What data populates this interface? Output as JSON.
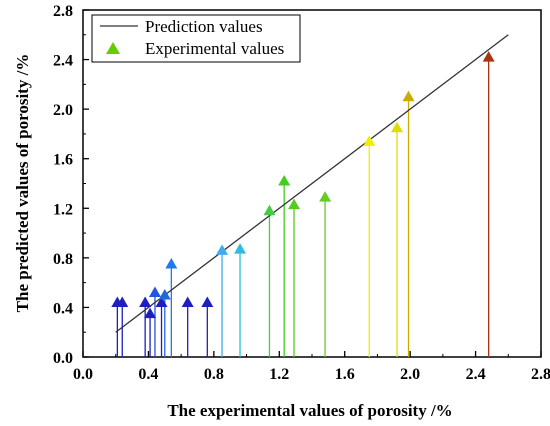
{
  "chart_data": {
    "type": "scatter",
    "xlabel": "The  experimental values of porosity /%",
    "ylabel": "The  predicted values of porosity /%",
    "xlim": [
      0.0,
      2.8
    ],
    "ylim": [
      0.0,
      2.8
    ],
    "x_ticks": [
      "0.0",
      "0.4",
      "0.8",
      "1.2",
      "1.6",
      "2.0",
      "2.4",
      "2.8"
    ],
    "y_ticks": [
      "0.0",
      "0.4",
      "0.8",
      "1.2",
      "1.6",
      "2.0",
      "2.4",
      "2.8"
    ],
    "legend": {
      "position": "top-left",
      "entries": [
        "Prediction values",
        "Experimental values"
      ]
    },
    "prediction_line": {
      "name": "Prediction values",
      "x": [
        0.2,
        2.6
      ],
      "y": [
        0.2,
        2.6
      ],
      "color": "#333333"
    },
    "experimental": {
      "name": "Experimental values",
      "legend_color": "#66cc00",
      "points": [
        {
          "x": 0.21,
          "y": 0.44,
          "color": "#1f1fbf"
        },
        {
          "x": 0.24,
          "y": 0.44,
          "color": "#1f1fbf"
        },
        {
          "x": 0.38,
          "y": 0.44,
          "color": "#1f1fbf"
        },
        {
          "x": 0.41,
          "y": 0.35,
          "color": "#1f1fbf"
        },
        {
          "x": 0.44,
          "y": 0.52,
          "color": "#2255dd"
        },
        {
          "x": 0.48,
          "y": 0.44,
          "color": "#1f1fbf"
        },
        {
          "x": 0.5,
          "y": 0.5,
          "color": "#2266dd"
        },
        {
          "x": 0.54,
          "y": 0.75,
          "color": "#2277ee"
        },
        {
          "x": 0.64,
          "y": 0.44,
          "color": "#1f1fbf"
        },
        {
          "x": 0.76,
          "y": 0.44,
          "color": "#1f1fbf"
        },
        {
          "x": 0.85,
          "y": 0.86,
          "color": "#44aaee"
        },
        {
          "x": 0.96,
          "y": 0.87,
          "color": "#33bbdd"
        },
        {
          "x": 1.14,
          "y": 1.18,
          "color": "#44cc44"
        },
        {
          "x": 1.23,
          "y": 1.42,
          "color": "#44cc22"
        },
        {
          "x": 1.29,
          "y": 1.23,
          "color": "#55cc22"
        },
        {
          "x": 1.48,
          "y": 1.29,
          "color": "#66cc22"
        },
        {
          "x": 1.75,
          "y": 1.74,
          "color": "#eeee00"
        },
        {
          "x": 1.92,
          "y": 1.85,
          "color": "#dddd00"
        },
        {
          "x": 1.99,
          "y": 2.1,
          "color": "#ccaa00"
        },
        {
          "x": 2.48,
          "y": 2.42,
          "color": "#aa3311"
        }
      ]
    }
  }
}
